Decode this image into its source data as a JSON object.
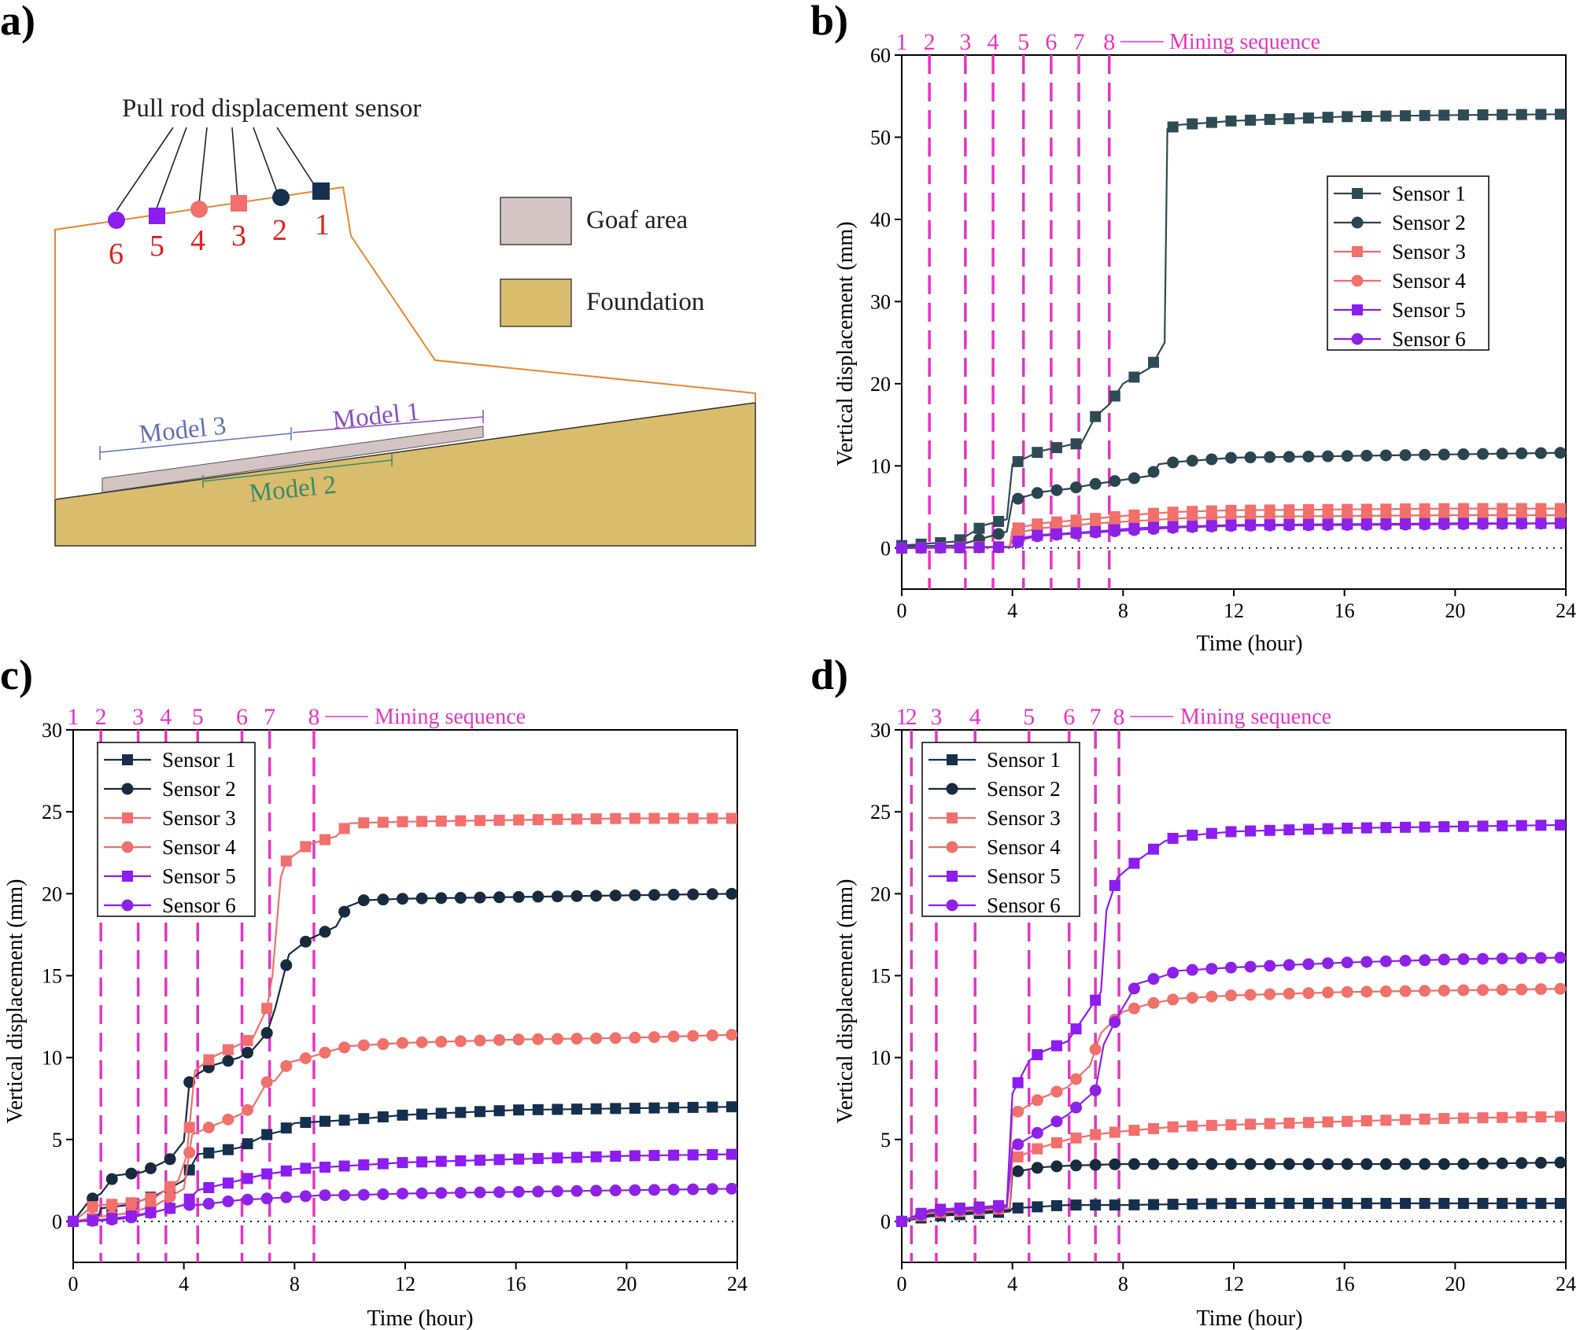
{
  "colors": {
    "sensor1": "#15304f",
    "sensor2": "#172b3f",
    "sensor3": "#f26f6d",
    "sensor4": "#f0706a",
    "sensor5": "#8c1cf0",
    "sensor6": "#8d22e6",
    "sensor1_b": "#2e4b55",
    "sensor2_b": "#2a4450",
    "mining": "#e535c3",
    "goaf": "#d4c4c4",
    "foundation": "#d9bd6d",
    "outline": "#e8872f"
  },
  "panel_a": {
    "label": "a)",
    "sensor_title": "Pull rod displacement sensor",
    "sensor_numbers": [
      "6",
      "5",
      "4",
      "3",
      "2",
      "1"
    ],
    "legend": [
      {
        "key": "goaf",
        "label": "Goaf area"
      },
      {
        "key": "foundation",
        "label": "Foundation"
      }
    ],
    "models": {
      "m1": "Model 1",
      "m2": "Model 2",
      "m3": "Model 3"
    }
  },
  "chart_data": [
    {
      "id": "b",
      "label": "b)",
      "type": "line",
      "xlabel": "Time (hour)",
      "ylabel": "Vertical displacement (mm)",
      "xlim": [
        0,
        24
      ],
      "ylim": [
        -5,
        60
      ],
      "xticks": [
        0,
        4,
        8,
        12,
        16,
        20,
        24
      ],
      "yticks": [
        0,
        10,
        20,
        30,
        40,
        50,
        60
      ],
      "mining_sequence": {
        "label": "Mining sequence",
        "x": [
          1.0,
          2.3,
          3.3,
          4.4,
          5.4,
          6.4,
          7.5
        ],
        "labels": [
          "1",
          "2",
          "3",
          "4",
          "5",
          "6",
          "7",
          "8"
        ],
        "label_x": [
          0.0,
          1.0,
          2.3,
          3.3,
          4.4,
          5.4,
          6.4,
          7.5
        ]
      },
      "legend_position": "right",
      "series": [
        {
          "name": "Sensor 1",
          "color_key": "sensor1_b",
          "marker": "square",
          "x": [
            0,
            2,
            3,
            3.8,
            4.0,
            5,
            6,
            6.5,
            7,
            7.5,
            8,
            9,
            9.5,
            9.6,
            10,
            12,
            16,
            20,
            24
          ],
          "y": [
            0.3,
            0.8,
            2.8,
            3.5,
            10.2,
            11.8,
            12.5,
            12.8,
            16,
            17.5,
            20,
            22,
            25,
            51,
            51.5,
            52,
            52.5,
            52.7,
            52.8
          ]
        },
        {
          "name": "Sensor 2",
          "color_key": "sensor2_b",
          "marker": "circle",
          "x": [
            0,
            2,
            3.8,
            4.0,
            5,
            6,
            7,
            8,
            9,
            9.3,
            10,
            12,
            16,
            20,
            24
          ],
          "y": [
            0.2,
            0.3,
            2.0,
            5.8,
            6.8,
            7.2,
            7.8,
            8.3,
            8.8,
            10.2,
            10.5,
            11.0,
            11.2,
            11.4,
            11.6
          ]
        },
        {
          "name": "Sensor 3",
          "color_key": "sensor3",
          "marker": "square",
          "x": [
            0,
            3.9,
            4.0,
            5,
            6,
            7,
            8,
            9,
            10,
            12,
            16,
            20,
            24
          ],
          "y": [
            0,
            0.2,
            2.3,
            3.0,
            3.3,
            3.6,
            3.9,
            4.2,
            4.4,
            4.6,
            4.7,
            4.8,
            4.8
          ]
        },
        {
          "name": "Sensor 4",
          "color_key": "sensor4",
          "marker": "circle",
          "x": [
            0,
            3.9,
            4.1,
            5,
            6,
            7,
            8,
            9,
            10,
            12,
            16,
            20,
            24
          ],
          "y": [
            0,
            0.1,
            1.8,
            2.4,
            2.7,
            3.0,
            3.2,
            3.4,
            3.6,
            3.8,
            3.9,
            4.0,
            4.0
          ]
        },
        {
          "name": "Sensor 5",
          "color_key": "sensor5",
          "marker": "square",
          "x": [
            0,
            4.0,
            4.3,
            5,
            6,
            7,
            8,
            9,
            10,
            12,
            16,
            20,
            24
          ],
          "y": [
            0,
            0.1,
            1.2,
            1.6,
            1.8,
            2.0,
            2.3,
            2.5,
            2.6,
            2.8,
            2.9,
            3.0,
            3.0
          ]
        },
        {
          "name": "Sensor 6",
          "color_key": "sensor6",
          "marker": "circle",
          "x": [
            0,
            4.0,
            4.3,
            5,
            6,
            7,
            8,
            9,
            10,
            12,
            16,
            20,
            24
          ],
          "y": [
            0,
            0.1,
            1.0,
            1.5,
            1.7,
            1.9,
            2.1,
            2.3,
            2.5,
            2.7,
            2.8,
            2.9,
            3.0
          ]
        }
      ]
    },
    {
      "id": "c",
      "label": "c)",
      "type": "line",
      "xlabel": "Time (hour)",
      "ylabel": "Vertical displacement (mm)",
      "xlim": [
        0,
        24
      ],
      "ylim": [
        -2.5,
        30
      ],
      "xticks": [
        0,
        4,
        8,
        12,
        16,
        20,
        24
      ],
      "yticks": [
        0,
        5,
        10,
        15,
        20,
        25,
        30
      ],
      "mining_sequence": {
        "label": "Mining sequence",
        "x": [
          1.0,
          2.35,
          3.35,
          4.5,
          6.1,
          7.1,
          8.7
        ],
        "labels": [
          "1",
          "2",
          "3",
          "4",
          "5",
          "6",
          "7",
          "8"
        ],
        "label_x": [
          0.0,
          1.0,
          2.35,
          3.35,
          4.5,
          6.1,
          7.1,
          8.7
        ]
      },
      "legend_position": "top-left",
      "series": [
        {
          "name": "Sensor 1",
          "color_key": "sensor1",
          "marker": "square",
          "x": [
            0,
            0.9,
            1.0,
            2,
            3,
            4,
            4.5,
            5,
            6,
            7,
            7.5,
            8,
            9,
            10,
            12,
            16,
            20,
            24
          ],
          "y": [
            0,
            0.2,
            0.8,
            1.0,
            1.6,
            2.5,
            4.1,
            4.2,
            4.5,
            5.3,
            5.5,
            6.0,
            6.1,
            6.2,
            6.5,
            6.8,
            6.9,
            7.0
          ]
        },
        {
          "name": "Sensor 2",
          "color_key": "sensor2",
          "marker": "circle",
          "x": [
            0,
            0.6,
            1,
            1.5,
            2.5,
            3.5,
            4.0,
            4.2,
            4.5,
            5,
            6,
            6.5,
            7.0,
            7.3,
            7.8,
            8.5,
            9.5,
            9.9,
            10.5,
            12,
            16,
            20,
            24
          ],
          "y": [
            0,
            1.3,
            1.7,
            2.8,
            3.0,
            3.8,
            4.9,
            8.5,
            9.0,
            9.5,
            10.0,
            10.5,
            11.5,
            13.0,
            16.3,
            17.2,
            18.0,
            19.2,
            19.6,
            19.7,
            19.8,
            19.9,
            20.0
          ]
        },
        {
          "name": "Sensor 3",
          "color_key": "sensor3",
          "marker": "square",
          "x": [
            0,
            0.7,
            1,
            2,
            3,
            3.8,
            4.1,
            4.4,
            5,
            6,
            6.5,
            7.0,
            7.2,
            7.5,
            7.7,
            8.5,
            9.5,
            10.0,
            12,
            16,
            20,
            24
          ],
          "y": [
            0,
            0.9,
            1.0,
            1.1,
            1.5,
            2.5,
            4.0,
            9.2,
            10.0,
            10.8,
            11.2,
            13.0,
            15.0,
            21.0,
            22.0,
            23.0,
            23.5,
            24.3,
            24.4,
            24.5,
            24.6,
            24.6
          ]
        },
        {
          "name": "Sensor 4",
          "color_key": "sensor4",
          "marker": "circle",
          "x": [
            0,
            1,
            2,
            3,
            4.0,
            4.3,
            5,
            6,
            6.5,
            7.0,
            7.3,
            7.8,
            8.5,
            9.5,
            10,
            12,
            16,
            20,
            24
          ],
          "y": [
            0,
            0.3,
            0.5,
            1.0,
            2.0,
            5.3,
            5.8,
            6.5,
            7.0,
            8.5,
            8.6,
            9.7,
            10.0,
            10.5,
            10.7,
            10.9,
            11.1,
            11.2,
            11.4
          ]
        },
        {
          "name": "Sensor 5",
          "color_key": "sensor5",
          "marker": "square",
          "x": [
            0,
            1,
            2,
            3,
            4,
            4.5,
            5,
            6,
            7,
            7.5,
            8,
            9,
            10,
            12,
            16,
            20,
            24
          ],
          "y": [
            0,
            0.1,
            0.3,
            0.6,
            1.0,
            1.9,
            2.1,
            2.5,
            2.9,
            3.0,
            3.2,
            3.3,
            3.4,
            3.6,
            3.8,
            4.0,
            4.1
          ]
        },
        {
          "name": "Sensor 6",
          "color_key": "sensor6",
          "marker": "circle",
          "x": [
            0,
            1,
            2,
            3,
            4,
            4.5,
            5,
            6,
            7,
            8,
            9,
            10,
            12,
            16,
            20,
            24
          ],
          "y": [
            0,
            0.05,
            0.2,
            0.6,
            1.0,
            1.0,
            1.1,
            1.3,
            1.4,
            1.5,
            1.6,
            1.6,
            1.7,
            1.8,
            1.9,
            2.0
          ]
        }
      ]
    },
    {
      "id": "d",
      "label": "d)",
      "type": "line",
      "xlabel": "Time (hour)",
      "ylabel": "Vertical displacement (mm)",
      "xlim": [
        0,
        24
      ],
      "ylim": [
        -2.5,
        30
      ],
      "xticks": [
        0,
        4,
        8,
        12,
        16,
        20,
        24
      ],
      "yticks": [
        0,
        5,
        10,
        15,
        20,
        25,
        30
      ],
      "mining_sequence": {
        "label": "Mining sequence",
        "x": [
          0.35,
          1.25,
          2.65,
          4.6,
          6.05,
          7.0,
          7.85
        ],
        "labels": [
          "1",
          "2",
          "3",
          "4",
          "5",
          "6",
          "7",
          "8"
        ],
        "label_x": [
          0.0,
          0.35,
          1.25,
          2.65,
          4.6,
          6.05,
          7.0,
          7.85
        ]
      },
      "legend_position": "top-left",
      "series": [
        {
          "name": "Sensor 1",
          "color_key": "sensor1",
          "marker": "square",
          "x": [
            0,
            1,
            3,
            3.9,
            4.0,
            5,
            6,
            8,
            12,
            16,
            20,
            24
          ],
          "y": [
            0,
            0.3,
            0.5,
            0.6,
            0.8,
            0.9,
            1.0,
            1.0,
            1.1,
            1.1,
            1.1,
            1.1
          ]
        },
        {
          "name": "Sensor 2",
          "color_key": "sensor2",
          "marker": "circle",
          "x": [
            0,
            1,
            3,
            3.9,
            4.0,
            5,
            6,
            8,
            12,
            16,
            20,
            24
          ],
          "y": [
            0,
            0.4,
            0.6,
            0.7,
            3.0,
            3.3,
            3.4,
            3.5,
            3.5,
            3.5,
            3.5,
            3.6
          ]
        },
        {
          "name": "Sensor 3",
          "color_key": "sensor3",
          "marker": "square",
          "x": [
            0,
            1,
            3,
            3.9,
            4.0,
            5,
            6,
            7,
            8,
            10,
            12,
            16,
            20,
            24
          ],
          "y": [
            0,
            0.5,
            0.7,
            0.8,
            3.8,
            4.5,
            5.0,
            5.3,
            5.5,
            5.8,
            5.9,
            6.1,
            6.3,
            6.4
          ]
        },
        {
          "name": "Sensor 4",
          "color_key": "sensor4",
          "marker": "circle",
          "x": [
            0,
            1,
            3,
            3.8,
            4.0,
            5,
            6,
            6.8,
            7.2,
            7.5,
            8,
            9,
            10,
            12,
            16,
            20,
            24
          ],
          "y": [
            0,
            0.6,
            0.8,
            0.9,
            6.5,
            7.5,
            8.2,
            9.5,
            11.5,
            12.0,
            12.8,
            13.3,
            13.6,
            13.8,
            14.0,
            14.1,
            14.2
          ]
        },
        {
          "name": "Sensor 5",
          "color_key": "sensor5",
          "marker": "square",
          "x": [
            0,
            1,
            3,
            3.8,
            4.0,
            4.6,
            5,
            6,
            6.8,
            7.2,
            7.4,
            7.8,
            8.5,
            9.5,
            10,
            12,
            16,
            20,
            24
          ],
          "y": [
            0,
            0.7,
            0.9,
            1.0,
            7.8,
            9.8,
            10.3,
            11.0,
            13.0,
            14.0,
            19.0,
            21.0,
            22.0,
            23.2,
            23.5,
            23.8,
            24.0,
            24.1,
            24.2
          ]
        },
        {
          "name": "Sensor 6",
          "color_key": "sensor6",
          "marker": "circle",
          "x": [
            0,
            1,
            3,
            3.8,
            4.0,
            5,
            6,
            7,
            7.3,
            7.8,
            8.5,
            9.5,
            10,
            12,
            16,
            20,
            24
          ],
          "y": [
            0,
            0.6,
            0.8,
            0.9,
            4.5,
            5.5,
            6.5,
            8.0,
            10.8,
            12.5,
            14.5,
            15.0,
            15.3,
            15.5,
            15.8,
            16.0,
            16.1
          ]
        }
      ]
    }
  ]
}
